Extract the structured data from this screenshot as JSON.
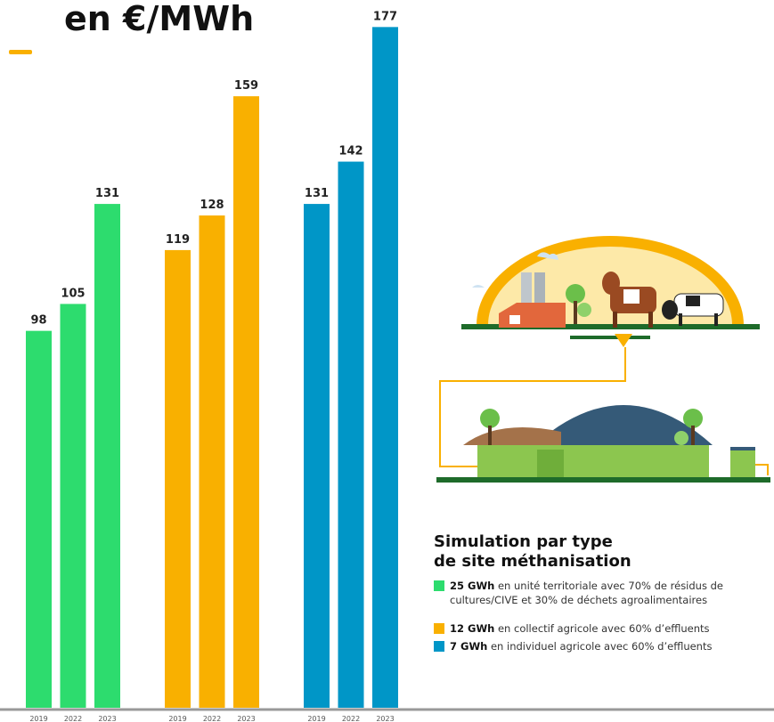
{
  "chart_data": {
    "type": "bar",
    "title": "en €/MWh",
    "categories": [
      "2019",
      "2022",
      "2023"
    ],
    "series": [
      {
        "name": "25 GWh",
        "description": "en unité territoriale avec 70% de résidus de cultures/CIVE et 30% de déchets agroalimentaires",
        "color": "#2ddc6e",
        "values": [
          98,
          105,
          131
        ]
      },
      {
        "name": "12 GWh",
        "description": "en collectif agricole avec 60% d’effluents",
        "color": "#f9b000",
        "values": [
          119,
          128,
          159
        ]
      },
      {
        "name": "7 GWh",
        "description": "en individuel agricole avec 60% d’effluents",
        "color": "#0096c7",
        "values": [
          131,
          142,
          177
        ]
      }
    ],
    "legend_title": [
      "Simulation par type",
      "de site méthanisation"
    ]
  }
}
